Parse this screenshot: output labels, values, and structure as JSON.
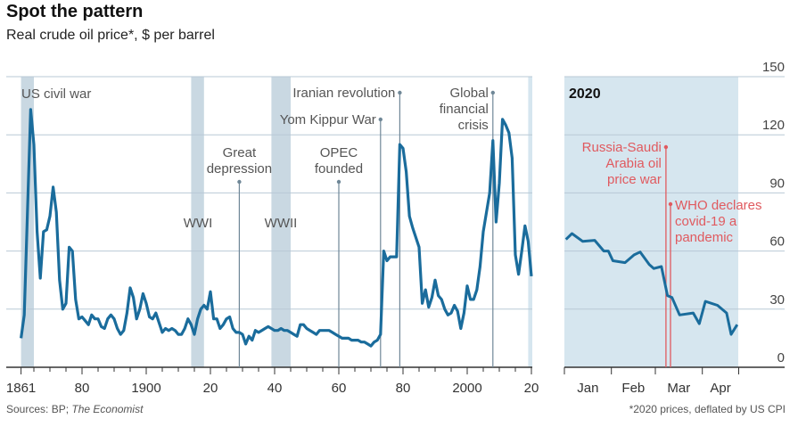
{
  "title": "Spot the pattern",
  "subtitle": "Real crude oil price*, $ per barrel",
  "footer": {
    "sources_prefix": "Sources: BP; ",
    "sources_italic": "The Economist",
    "note": "*2020 prices, deflated by US CPI"
  },
  "colors": {
    "line": "#1a6c9c",
    "grid": "#b9c9d6",
    "band": "#c9d8e2",
    "panel2020": "#d6e6ef",
    "annotation": "#555555",
    "event2020": "#e05a5f"
  },
  "chart_data": [
    {
      "type": "line",
      "title": "",
      "xlabel": "",
      "ylabel": "",
      "xlim": [
        1861,
        2020
      ],
      "ylim": [
        0,
        150
      ],
      "grid": true,
      "x_tick_labels": [
        {
          "x": 1861,
          "label": "1861"
        },
        {
          "x": 1880,
          "label": "80"
        },
        {
          "x": 1900,
          "label": "1900"
        },
        {
          "x": 1920,
          "label": "20"
        },
        {
          "x": 1940,
          "label": "40"
        },
        {
          "x": 1960,
          "label": "60"
        },
        {
          "x": 1980,
          "label": "80"
        },
        {
          "x": 2000,
          "label": "2000"
        },
        {
          "x": 2020,
          "label": "20"
        }
      ],
      "x": [
        1861,
        1862,
        1863,
        1864,
        1865,
        1866,
        1867,
        1868,
        1869,
        1870,
        1871,
        1872,
        1873,
        1874,
        1875,
        1876,
        1877,
        1878,
        1879,
        1880,
        1881,
        1882,
        1883,
        1884,
        1885,
        1886,
        1887,
        1888,
        1889,
        1890,
        1891,
        1892,
        1893,
        1894,
        1895,
        1896,
        1897,
        1898,
        1899,
        1900,
        1901,
        1902,
        1903,
        1904,
        1905,
        1906,
        1907,
        1908,
        1909,
        1910,
        1911,
        1912,
        1913,
        1914,
        1915,
        1916,
        1917,
        1918,
        1919,
        1920,
        1921,
        1922,
        1923,
        1924,
        1925,
        1926,
        1927,
        1928,
        1929,
        1930,
        1931,
        1932,
        1933,
        1934,
        1935,
        1936,
        1937,
        1938,
        1939,
        1940,
        1941,
        1942,
        1943,
        1944,
        1945,
        1946,
        1947,
        1948,
        1949,
        1950,
        1951,
        1952,
        1953,
        1954,
        1955,
        1956,
        1957,
        1958,
        1959,
        1960,
        1961,
        1962,
        1963,
        1964,
        1965,
        1966,
        1967,
        1968,
        1969,
        1970,
        1971,
        1972,
        1973,
        1974,
        1975,
        1976,
        1977,
        1978,
        1979,
        1980,
        1981,
        1982,
        1983,
        1984,
        1985,
        1986,
        1987,
        1988,
        1989,
        1990,
        1991,
        1992,
        1993,
        1994,
        1995,
        1996,
        1997,
        1998,
        1999,
        2000,
        2001,
        2002,
        2003,
        2004,
        2005,
        2006,
        2007,
        2008,
        2009,
        2010,
        2011,
        2012,
        2013,
        2014,
        2015,
        2016,
        2017,
        2018,
        2019,
        2020
      ],
      "values": [
        15,
        27,
        80,
        133,
        115,
        70,
        46,
        70,
        71,
        78,
        93,
        80,
        45,
        30,
        33,
        62,
        60,
        35,
        25,
        26,
        24,
        22,
        27,
        25,
        25,
        21,
        20,
        25,
        27,
        25,
        20,
        17,
        19,
        28,
        41,
        36,
        25,
        30,
        38,
        33,
        26,
        25,
        28,
        23,
        18,
        20,
        19,
        20,
        19,
        17,
        17,
        20,
        25,
        22,
        17,
        25,
        30,
        32,
        30,
        39,
        25,
        25,
        20,
        22,
        25,
        26,
        20,
        18,
        18,
        17,
        12,
        16,
        14,
        19,
        18,
        19,
        20,
        21,
        20,
        19,
        19,
        20,
        19,
        19,
        18,
        17,
        16,
        22,
        22,
        20,
        19,
        18,
        17,
        19,
        19,
        19,
        19,
        18,
        17,
        16,
        15,
        15,
        15,
        14,
        14,
        14,
        13,
        13,
        12,
        11,
        13,
        14,
        17,
        60,
        55,
        57,
        57,
        57,
        115,
        113,
        101,
        78,
        72,
        67,
        62,
        33,
        40,
        31,
        36,
        45,
        37,
        35,
        30,
        27,
        28,
        32,
        29,
        20,
        28,
        42,
        35,
        35,
        40,
        52,
        70,
        80,
        90,
        117,
        75,
        95,
        128,
        125,
        121,
        108,
        58,
        48,
        60,
        73,
        65,
        47
      ],
      "shaded_periods": [
        {
          "label": "US civil war",
          "start": 1861,
          "end": 1865
        },
        {
          "label": "WWI",
          "start": 1914,
          "end": 1918
        },
        {
          "label": "WWII",
          "start": 1939,
          "end": 1945
        }
      ],
      "events": [
        {
          "year": 1929,
          "lines": [
            "Great",
            "depression"
          ]
        },
        {
          "year": 1960,
          "lines": [
            "OPEC",
            "founded"
          ]
        },
        {
          "year": 1973,
          "lines": [
            "Yom Kippur War"
          ]
        },
        {
          "year": 1979,
          "lines": [
            "Iranian revolution"
          ]
        },
        {
          "year": 2008,
          "lines": [
            "Global",
            "financial",
            "crisis"
          ]
        }
      ]
    },
    {
      "type": "line",
      "title": "2020",
      "xlim": [
        "2020-01-01",
        "2020-04-25"
      ],
      "ylim": [
        0,
        150
      ],
      "y_ticks": [
        0,
        30,
        60,
        90,
        120,
        150
      ],
      "x_tick_labels": [
        "Jan",
        "Feb",
        "Mar",
        "Apr"
      ],
      "x": [
        "2020-01-02",
        "2020-01-06",
        "2020-01-13",
        "2020-01-21",
        "2020-01-27",
        "2020-01-30",
        "2020-02-02",
        "2020-02-10",
        "2020-02-16",
        "2020-02-20",
        "2020-02-26",
        "2020-02-29",
        "2020-03-05",
        "2020-03-09",
        "2020-03-12",
        "2020-03-17",
        "2020-03-26",
        "2020-03-30",
        "2020-04-03",
        "2020-04-11",
        "2020-04-17",
        "2020-04-20",
        "2020-04-24"
      ],
      "values": [
        66,
        69,
        65,
        65.5,
        60,
        60,
        55,
        54,
        58,
        59.5,
        53,
        51,
        52,
        37,
        36,
        27,
        28,
        22.5,
        34,
        32,
        28,
        17,
        22
      ],
      "events": [
        {
          "date": "2020-03-08",
          "lines": [
            "Russia-Saudi",
            "Arabia oil",
            "price war"
          ]
        },
        {
          "date": "2020-03-11",
          "lines": [
            "WHO declares",
            "covid-19 a",
            "pandemic"
          ]
        }
      ]
    }
  ]
}
